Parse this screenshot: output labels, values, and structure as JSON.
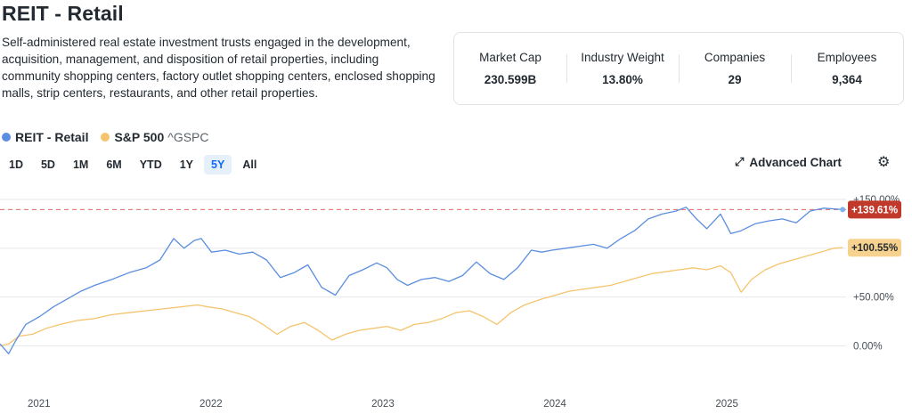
{
  "title": "REIT - Retail",
  "description": "Self-administered real estate investment trusts engaged in the development, acquisition, management, and disposition of retail properties, including community shopping centers, factory outlet shopping centers, enclosed shopping malls, strip centers, restaurants, and other retail properties.",
  "stats": [
    {
      "label": "Market Cap",
      "value": "230.599B"
    },
    {
      "label": "Industry Weight",
      "value": "13.80%"
    },
    {
      "label": "Companies",
      "value": "29"
    },
    {
      "label": "Employees",
      "value": "9,364"
    }
  ],
  "legend": {
    "series1": {
      "name": "REIT - Retail",
      "color": "#5b8ee0"
    },
    "series2": {
      "name": "S&P 500",
      "ticker": "^GSPC",
      "color": "#f5c46e"
    }
  },
  "ranges": [
    "1D",
    "5D",
    "1M",
    "6M",
    "YTD",
    "1Y",
    "5Y",
    "All"
  ],
  "active_range": "5Y",
  "advanced_chart_label": "Advanced Chart",
  "icons": {
    "advanced": "expand-arrow-icon",
    "settings": "gear-icon"
  },
  "chart_data": {
    "type": "line",
    "xlabel": "",
    "ylabel": "",
    "x_ticks": [
      "2021",
      "2022",
      "2023",
      "2024",
      "2025"
    ],
    "y_ticks": [
      "+150.00%",
      "+100.00%",
      "+50.00%",
      "0.00%"
    ],
    "ylim": [
      -15,
      160
    ],
    "xlim": [
      2020.85,
      2025.77
    ],
    "grid": true,
    "y_axis_position": "right",
    "series": [
      {
        "name": "REIT - Retail",
        "color": "#5b8ee0",
        "last_value_label": "+139.61%",
        "last_value_label_color": "#c0392b",
        "reference_line": 139.61,
        "points": [
          [
            2020.85,
            2
          ],
          [
            2020.9,
            -8
          ],
          [
            2020.94,
            5
          ],
          [
            2021.0,
            22
          ],
          [
            2021.08,
            30
          ],
          [
            2021.16,
            40
          ],
          [
            2021.24,
            48
          ],
          [
            2021.32,
            56
          ],
          [
            2021.4,
            62
          ],
          [
            2021.5,
            68
          ],
          [
            2021.6,
            75
          ],
          [
            2021.7,
            80
          ],
          [
            2021.78,
            88
          ],
          [
            2021.86,
            110
          ],
          [
            2021.92,
            100
          ],
          [
            2021.98,
            108
          ],
          [
            2022.02,
            110
          ],
          [
            2022.08,
            96
          ],
          [
            2022.16,
            98
          ],
          [
            2022.24,
            94
          ],
          [
            2022.32,
            96
          ],
          [
            2022.4,
            88
          ],
          [
            2022.48,
            70
          ],
          [
            2022.56,
            75
          ],
          [
            2022.64,
            83
          ],
          [
            2022.72,
            60
          ],
          [
            2022.8,
            52
          ],
          [
            2022.88,
            72
          ],
          [
            2022.96,
            78
          ],
          [
            2023.04,
            85
          ],
          [
            2023.1,
            80
          ],
          [
            2023.16,
            68
          ],
          [
            2023.22,
            62
          ],
          [
            2023.3,
            68
          ],
          [
            2023.38,
            70
          ],
          [
            2023.46,
            66
          ],
          [
            2023.54,
            72
          ],
          [
            2023.62,
            86
          ],
          [
            2023.7,
            74
          ],
          [
            2023.78,
            68
          ],
          [
            2023.86,
            80
          ],
          [
            2023.94,
            98
          ],
          [
            2024.0,
            96
          ],
          [
            2024.06,
            98
          ],
          [
            2024.14,
            100
          ],
          [
            2024.22,
            102
          ],
          [
            2024.3,
            104
          ],
          [
            2024.38,
            100
          ],
          [
            2024.46,
            110
          ],
          [
            2024.54,
            118
          ],
          [
            2024.62,
            130
          ],
          [
            2024.7,
            135
          ],
          [
            2024.78,
            138
          ],
          [
            2024.84,
            142
          ],
          [
            2024.9,
            130
          ],
          [
            2024.96,
            120
          ],
          [
            2025.04,
            135
          ],
          [
            2025.1,
            115
          ],
          [
            2025.16,
            118
          ],
          [
            2025.24,
            125
          ],
          [
            2025.32,
            128
          ],
          [
            2025.4,
            130
          ],
          [
            2025.48,
            126
          ],
          [
            2025.56,
            138
          ],
          [
            2025.64,
            141
          ],
          [
            2025.72,
            140
          ],
          [
            2025.75,
            139.61
          ]
        ]
      },
      {
        "name": "S&P 500",
        "color": "#f5c46e",
        "last_value_label": "+100.55%",
        "last_value_label_color": "#f7d28e",
        "points": [
          [
            2020.85,
            0
          ],
          [
            2020.9,
            2
          ],
          [
            2020.96,
            10
          ],
          [
            2021.04,
            12
          ],
          [
            2021.12,
            18
          ],
          [
            2021.2,
            22
          ],
          [
            2021.3,
            26
          ],
          [
            2021.4,
            28
          ],
          [
            2021.5,
            32
          ],
          [
            2021.6,
            34
          ],
          [
            2021.7,
            36
          ],
          [
            2021.8,
            38
          ],
          [
            2021.9,
            40
          ],
          [
            2022.0,
            42
          ],
          [
            2022.06,
            40
          ],
          [
            2022.14,
            38
          ],
          [
            2022.22,
            34
          ],
          [
            2022.3,
            30
          ],
          [
            2022.38,
            22
          ],
          [
            2022.46,
            12
          ],
          [
            2022.54,
            20
          ],
          [
            2022.62,
            24
          ],
          [
            2022.7,
            16
          ],
          [
            2022.78,
            6
          ],
          [
            2022.86,
            12
          ],
          [
            2022.94,
            16
          ],
          [
            2023.02,
            18
          ],
          [
            2023.1,
            20
          ],
          [
            2023.18,
            16
          ],
          [
            2023.26,
            22
          ],
          [
            2023.34,
            24
          ],
          [
            2023.42,
            28
          ],
          [
            2023.5,
            34
          ],
          [
            2023.58,
            36
          ],
          [
            2023.66,
            30
          ],
          [
            2023.74,
            22
          ],
          [
            2023.82,
            34
          ],
          [
            2023.9,
            42
          ],
          [
            2024.0,
            48
          ],
          [
            2024.08,
            52
          ],
          [
            2024.16,
            56
          ],
          [
            2024.24,
            58
          ],
          [
            2024.32,
            60
          ],
          [
            2024.4,
            62
          ],
          [
            2024.48,
            66
          ],
          [
            2024.56,
            70
          ],
          [
            2024.64,
            74
          ],
          [
            2024.72,
            76
          ],
          [
            2024.8,
            78
          ],
          [
            2024.88,
            80
          ],
          [
            2024.96,
            78
          ],
          [
            2025.04,
            82
          ],
          [
            2025.1,
            75
          ],
          [
            2025.16,
            55
          ],
          [
            2025.22,
            68
          ],
          [
            2025.3,
            78
          ],
          [
            2025.38,
            84
          ],
          [
            2025.46,
            88
          ],
          [
            2025.54,
            92
          ],
          [
            2025.62,
            96
          ],
          [
            2025.7,
            100
          ],
          [
            2025.75,
            100.55
          ]
        ]
      }
    ]
  }
}
